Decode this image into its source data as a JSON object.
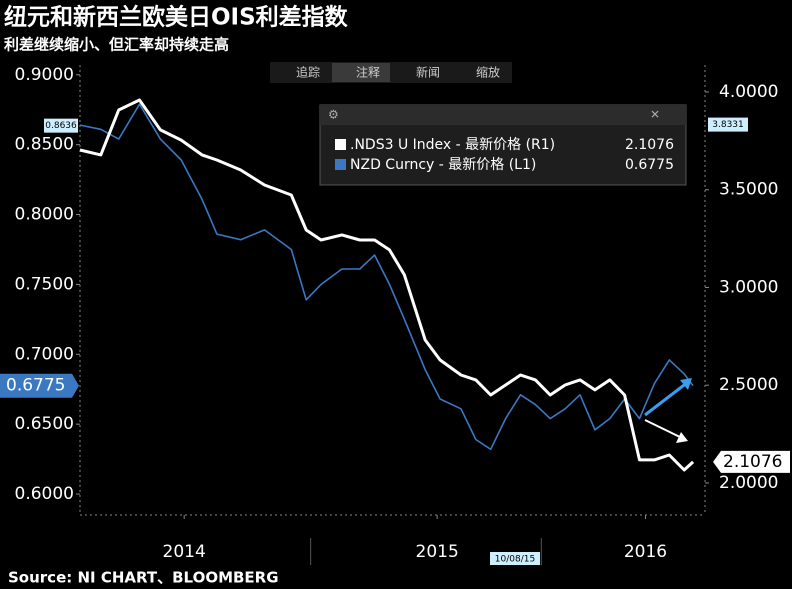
{
  "chart_data": {
    "type": "line",
    "title": "纽元和新西兰欧美日OIS利差指数",
    "subtitle": "利差继续缩小、但汇率却持续走高",
    "source": "Source: NI CHART、BLOOMBERG",
    "toolbar": [
      "追踪",
      "注释",
      "新闻",
      "缩放"
    ],
    "crosshair": {
      "date_label": "10/08/15",
      "left_value": 0.8636,
      "right_value": 3.8331
    },
    "x": [
      2014.3,
      2014.37,
      2014.43,
      2014.5,
      2014.57,
      2014.64,
      2014.71,
      2014.76,
      2014.84,
      2014.92,
      2015.01,
      2015.06,
      2015.11,
      2015.18,
      2015.24,
      2015.29,
      2015.34,
      2015.39,
      2015.46,
      2015.51,
      2015.58,
      2015.63,
      2015.68,
      2015.73,
      2015.78,
      2015.83,
      2015.88,
      2015.93,
      2015.98,
      2016.03,
      2016.08,
      2016.13,
      2016.18,
      2016.23,
      2016.28,
      2016.33,
      2016.36
    ],
    "xlim": [
      2014.3,
      2016.4
    ],
    "xticks": [
      {
        "value": 2014.65,
        "label": "2014"
      },
      {
        "value": 2015.5,
        "label": "2015"
      },
      {
        "value": 2016.2,
        "label": "2016"
      }
    ],
    "ylim": [
      0.585,
      0.907
    ],
    "yticks": [
      {
        "value": 0.9,
        "label": "0.9000"
      },
      {
        "value": 0.85,
        "label": "0.8500"
      },
      {
        "value": 0.8,
        "label": "0.8000"
      },
      {
        "value": 0.75,
        "label": "0.7500"
      },
      {
        "value": 0.7,
        "label": "0.7000"
      },
      {
        "value": 0.65,
        "label": "0.6500"
      },
      {
        "value": 0.6,
        "label": "0.6000"
      }
    ],
    "y2lim": [
      1.836,
      4.138
    ],
    "y2ticks": [
      {
        "value": 4.0,
        "label": "4.0000"
      },
      {
        "value": 3.5,
        "label": "3.5000"
      },
      {
        "value": 3.0,
        "label": "3.0000"
      },
      {
        "value": 2.5,
        "label": "2.5000"
      },
      {
        "value": 2.0,
        "label": "2.0000"
      }
    ],
    "series": [
      {
        "name": ".NDS3 U Index - 最新价格 (R1)",
        "color": "#ffffff",
        "axis": "y2",
        "values": [
          3.703,
          3.678,
          3.908,
          3.959,
          3.806,
          3.754,
          3.678,
          3.652,
          3.601,
          3.524,
          3.473,
          3.294,
          3.243,
          3.269,
          3.243,
          3.243,
          3.192,
          3.064,
          2.731,
          2.629,
          2.552,
          2.527,
          2.45,
          2.501,
          2.552,
          2.527,
          2.45,
          2.501,
          2.527,
          2.476,
          2.527,
          2.45,
          2.118,
          2.118,
          2.143,
          2.066,
          2.1076
        ]
      },
      {
        "name": "NZD Curncy - 最新价格 (L1)",
        "color": "#3b78c2",
        "axis": "y",
        "values": [
          0.864,
          0.861,
          0.854,
          0.879,
          0.854,
          0.839,
          0.811,
          0.786,
          0.782,
          0.789,
          0.775,
          0.739,
          0.75,
          0.761,
          0.761,
          0.771,
          0.75,
          0.725,
          0.689,
          0.668,
          0.661,
          0.639,
          0.632,
          0.654,
          0.671,
          0.664,
          0.654,
          0.661,
          0.671,
          0.646,
          0.654,
          0.668,
          0.654,
          0.679,
          0.696,
          0.686,
          0.6775
        ]
      }
    ]
  }
}
